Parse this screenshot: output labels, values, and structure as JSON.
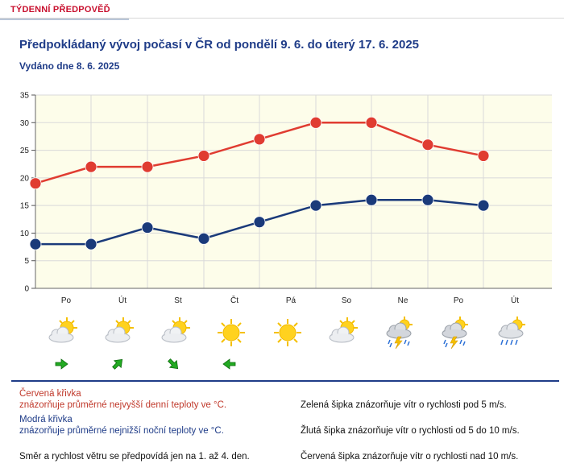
{
  "header": {
    "tab_label": "TÝDENNÍ PŘEDPOVĚĎ"
  },
  "title": "Předpokládaný vývoj počasí v ČR od pondělí 9. 6. do úterý 17. 6. 2025",
  "issued": "Vydáno dne 8. 6. 2025",
  "chart_data": {
    "type": "line",
    "categories": [
      "Po",
      "Út",
      "St",
      "Čt",
      "Pá",
      "So",
      "Ne",
      "Po",
      "Út"
    ],
    "y_ticks": [
      "0",
      "5",
      "10",
      "15",
      "20",
      "25",
      "30",
      "35"
    ],
    "ylim": [
      0,
      35
    ],
    "grid": true,
    "series": [
      {
        "color": "#e03c31",
        "values": [
          19,
          22,
          22,
          24,
          27,
          30,
          30,
          26,
          24
        ]
      },
      {
        "color": "#1a3a7a",
        "values": [
          8,
          8,
          11,
          9,
          12,
          15,
          16,
          16,
          15
        ]
      }
    ]
  },
  "forecast_icons": [
    "partly-cloudy-sun-icon",
    "partly-cloudy-sun-icon",
    "partly-cloudy-sun-icon",
    "sun-icon",
    "sun-icon",
    "partly-cloudy-sun-icon",
    "thunderstorm-rain-icon",
    "thunderstorm-rain-icon",
    "cloud-rain-icon"
  ],
  "wind_arrows": [
    {
      "direction": "east",
      "color": "#22aa22"
    },
    {
      "direction": "northeast",
      "color": "#22aa22"
    },
    {
      "direction": "southeast",
      "color": "#22aa22"
    },
    {
      "direction": "west",
      "color": "#22aa22"
    }
  ],
  "legend": {
    "red_title": "Červená křivka",
    "red_desc": "znázorňuje průměrné nejvyšší denní teploty ve °C.",
    "blue_title": "Modrá křivka",
    "blue_desc": "znázorňuje průměrné nejnižší noční teploty ve °C.",
    "wind_note": "Směr a rychlost větru se předpovídá jen na 1. až 4. den.",
    "green_arrow": "Zelená šipka znázorňuje vítr o rychlosti pod 5 m/s.",
    "yellow_arrow": "Žlutá šipka znázorňuje vítr o rychlosti od 5 do 10 m/s.",
    "red_arrow": "Červená šipka znázorňuje vítr o rychlosti nad 10 m/s."
  }
}
